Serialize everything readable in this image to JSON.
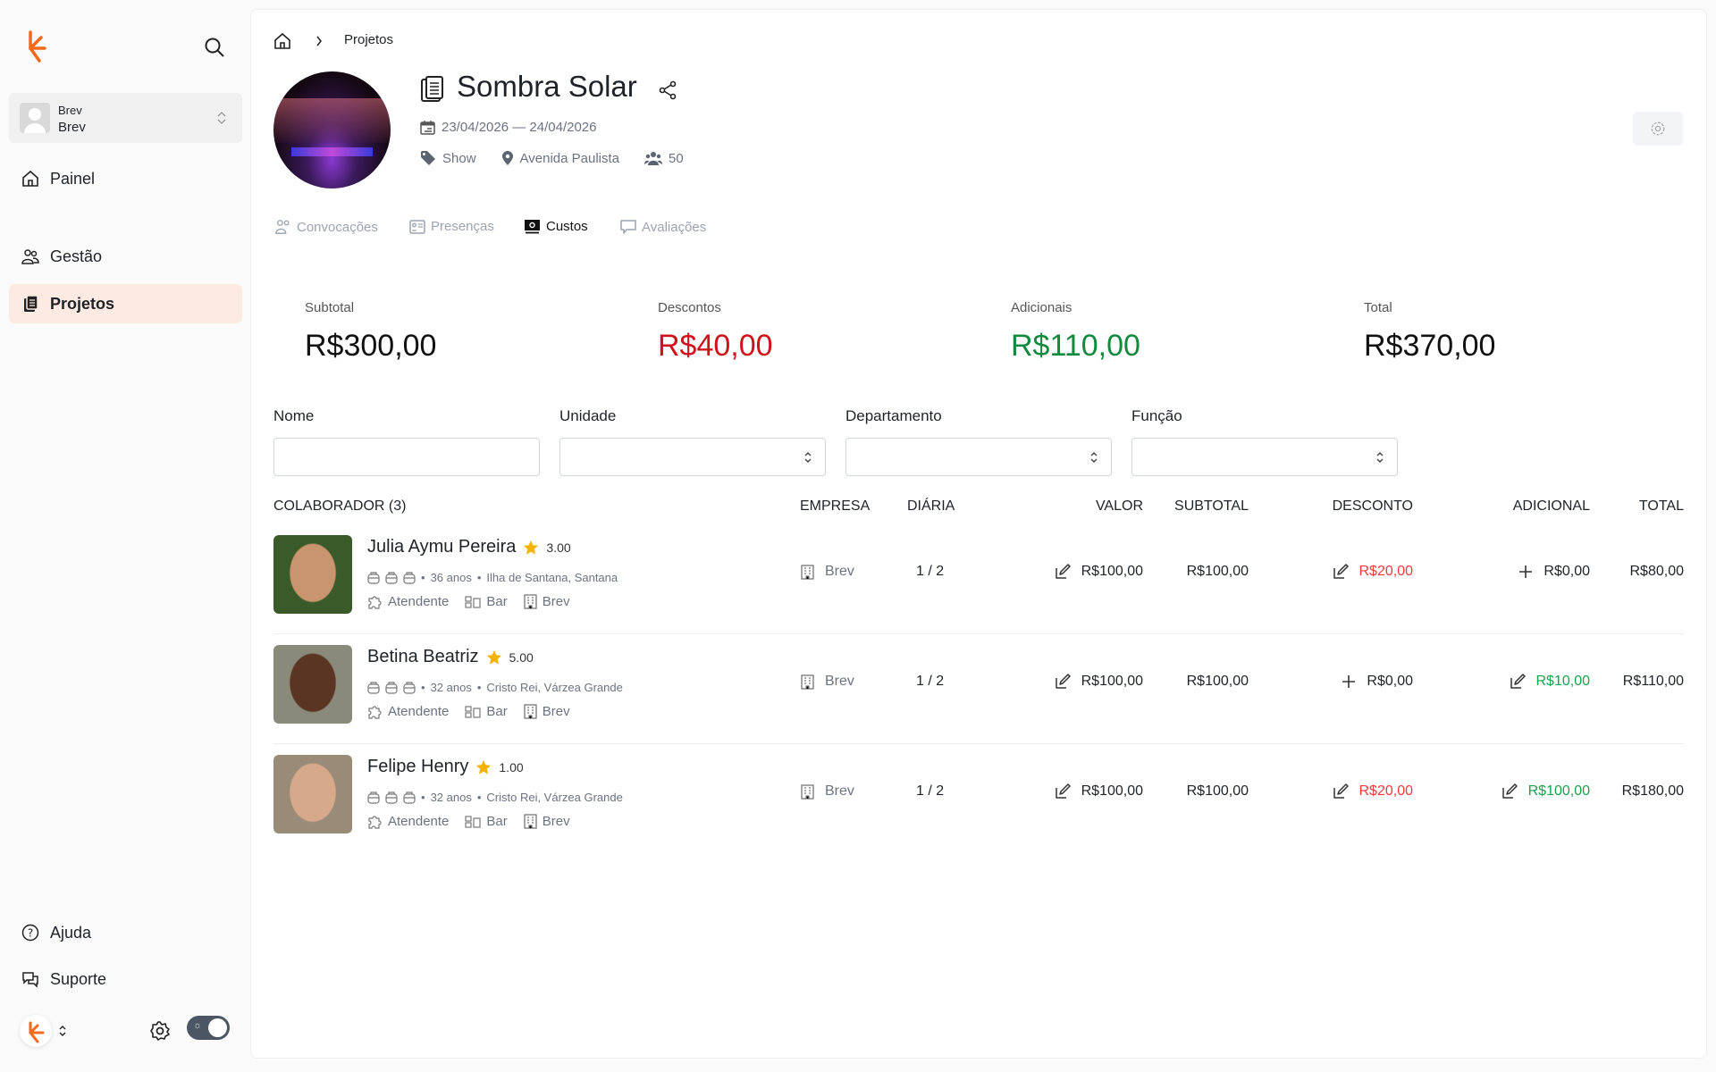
{
  "sidebar": {
    "user": {
      "line1": "Brev",
      "line2": "Brev"
    },
    "items": [
      {
        "label": "Painel",
        "icon": "home-icon"
      },
      {
        "label": "Gestão",
        "icon": "users-icon"
      },
      {
        "label": "Projetos",
        "icon": "clipboard-icon",
        "active": true
      }
    ],
    "bottom": [
      {
        "label": "Ajuda",
        "icon": "help-icon"
      },
      {
        "label": "Suporte",
        "icon": "chat-icon"
      }
    ],
    "theme_toggle": {
      "on": true
    },
    "brand_color": "#f26a1b"
  },
  "breadcrumb": {
    "current": "Projetos"
  },
  "project": {
    "title": "Sombra Solar",
    "dates": "23/04/2026 — 24/04/2026",
    "category": "Show",
    "location": "Avenida Paulista",
    "people": "50"
  },
  "tabs": [
    {
      "label": "Convocações"
    },
    {
      "label": "Presenças"
    },
    {
      "label": "Custos",
      "active": true
    },
    {
      "label": "Avaliações"
    }
  ],
  "summary": [
    {
      "label": "Subtotal",
      "value": "R$300,00",
      "color": "#111111"
    },
    {
      "label": "Descontos",
      "value": "R$40,00",
      "color": "#d0121b"
    },
    {
      "label": "Adicionais",
      "value": "R$110,00",
      "color": "#118a3e"
    },
    {
      "label": "Total",
      "value": "R$370,00",
      "color": "#111111"
    }
  ],
  "filters": {
    "nome": {
      "label": "Nome",
      "value": ""
    },
    "unidade": {
      "label": "Unidade",
      "value": ""
    },
    "departamento": {
      "label": "Departamento",
      "value": ""
    },
    "funcao": {
      "label": "Função",
      "value": ""
    }
  },
  "table": {
    "headers": {
      "colaborador": "COLABORADOR (3)",
      "empresa": "EMPRESA",
      "diaria": "DIÁRIA",
      "valor": "VALOR",
      "subtotal": "SUBTOTAL",
      "desconto": "DESCONTO",
      "adicional": "ADICIONAL",
      "total": "TOTAL"
    },
    "rows": [
      {
        "name": "Julia Aymu Pereira",
        "rating": "3.00",
        "age": "36 anos",
        "place": "Ilha de Santana, Santana",
        "role": "Atendente",
        "dept": "Bar",
        "unit": "Brev",
        "empresa": "Brev",
        "diaria": "1 / 2",
        "valor": "R$100,00",
        "subtotal": "R$100,00",
        "desconto": "R$20,00",
        "desconto_action": "edit",
        "adicional": "R$0,00",
        "adicional_action": "add",
        "total": "R$80,00"
      },
      {
        "name": "Betina Beatriz",
        "rating": "5.00",
        "age": "32 anos",
        "place": "Cristo Rei, Várzea Grande",
        "role": "Atendente",
        "dept": "Bar",
        "unit": "Brev",
        "empresa": "Brev",
        "diaria": "1 / 2",
        "valor": "R$100,00",
        "subtotal": "R$100,00",
        "desconto": "R$0,00",
        "desconto_action": "add",
        "adicional": "R$10,00",
        "adicional_action": "edit",
        "total": "R$110,00"
      },
      {
        "name": "Felipe Henry",
        "rating": "1.00",
        "age": "32 anos",
        "place": "Cristo Rei, Várzea Grande",
        "role": "Atendente",
        "dept": "Bar",
        "unit": "Brev",
        "empresa": "Brev",
        "diaria": "1 / 2",
        "valor": "R$100,00",
        "subtotal": "R$100,00",
        "desconto": "R$20,00",
        "desconto_action": "edit",
        "adicional": "R$100,00",
        "adicional_action": "edit",
        "total": "R$180,00"
      }
    ]
  }
}
